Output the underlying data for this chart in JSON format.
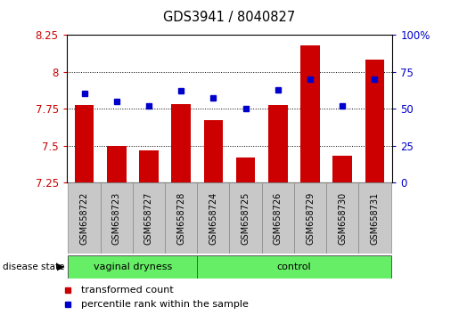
{
  "title": "GDS3941 / 8040827",
  "samples": [
    "GSM658722",
    "GSM658723",
    "GSM658727",
    "GSM658728",
    "GSM658724",
    "GSM658725",
    "GSM658726",
    "GSM658729",
    "GSM658730",
    "GSM658731"
  ],
  "red_values": [
    7.775,
    7.5,
    7.47,
    7.78,
    7.67,
    7.42,
    7.775,
    8.18,
    7.43,
    8.08
  ],
  "blue_values": [
    60,
    55,
    52,
    62,
    57,
    50,
    63,
    70,
    52,
    70
  ],
  "left_ylim": [
    7.25,
    8.25
  ],
  "right_ylim": [
    0,
    100
  ],
  "left_yticks": [
    7.25,
    7.5,
    7.75,
    8.0,
    8.25
  ],
  "right_yticks": [
    0,
    25,
    50,
    75,
    100
  ],
  "right_yticklabels": [
    "0",
    "25",
    "50",
    "75",
    "100%"
  ],
  "left_ytick_labels": [
    "7.25",
    "7.5",
    "7.75",
    "8",
    "8.25"
  ],
  "grid_values": [
    7.5,
    7.75,
    8.0
  ],
  "bar_color": "#cc0000",
  "dot_color": "#0000cc",
  "bar_width": 0.6,
  "left_tick_color": "#cc0000",
  "right_tick_color": "#0000cc",
  "legend_items": [
    "transformed count",
    "percentile rank within the sample"
  ],
  "legend_colors": [
    "#cc0000",
    "#0000cc"
  ],
  "disease_state_label": "disease state",
  "group_labels": [
    "vaginal dryness",
    "control"
  ],
  "group_split": 4,
  "green_color": "#66ee66",
  "gray_color": "#c8c8c8"
}
